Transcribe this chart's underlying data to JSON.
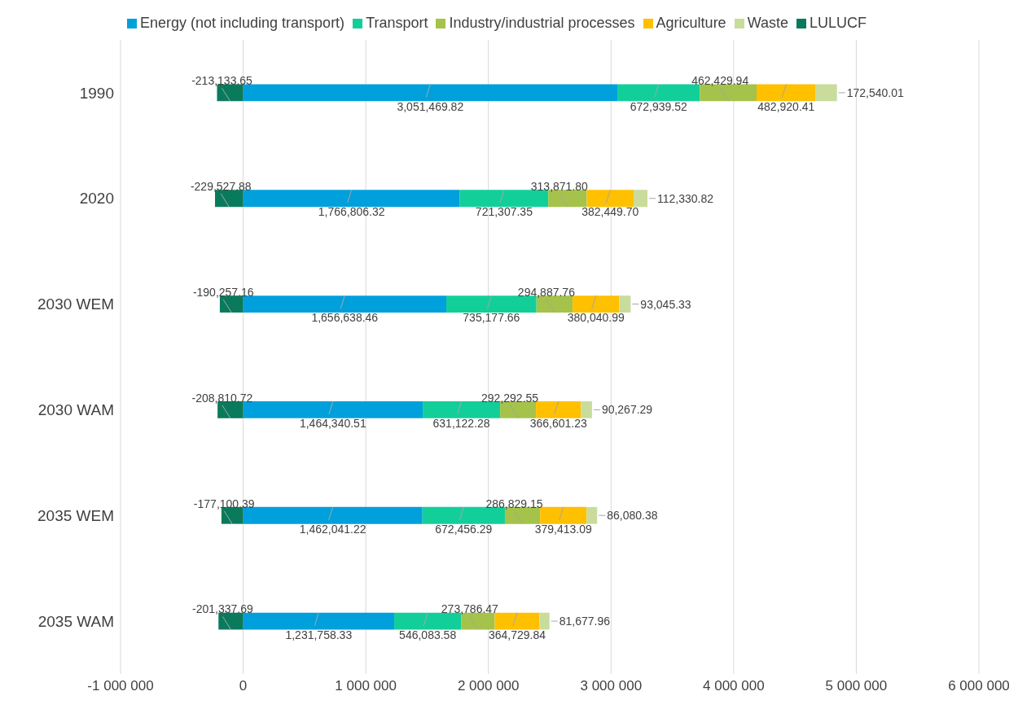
{
  "chart_data": {
    "type": "bar",
    "orientation": "horizontal",
    "stacked": true,
    "categories": [
      "1990",
      "2020",
      "2030 WEM",
      "2030 WAM",
      "2035 WEM",
      "2035 WAM"
    ],
    "series": [
      {
        "name": "Energy (not including transport)",
        "color": "#00a0dc",
        "values": [
          3051469.82,
          1766806.32,
          1656638.46,
          1464340.51,
          1462041.22,
          1231758.33
        ],
        "value_labels": [
          "3,051,469.82",
          "1,766,806.32",
          "1,656,638.46",
          "1,464,340.51",
          "1,462,041.22",
          "1,231,758.33"
        ]
      },
      {
        "name": "Transport",
        "color": "#12cf9a",
        "values": [
          672939.52,
          721307.35,
          735177.66,
          631122.28,
          672456.29,
          546083.58
        ],
        "value_labels": [
          "672,939.52",
          "721,307.35",
          "735,177.66",
          "631,122.28",
          "672,456.29",
          "546,083.58"
        ]
      },
      {
        "name": "Industry/industrial processes",
        "color": "#a5c24a",
        "values": [
          462429.94,
          313871.8,
          294887.76,
          292292.55,
          286829.15,
          273786.47
        ],
        "value_labels": [
          "462,429.94",
          "313,871.80",
          "294,887.76",
          "292,292.55",
          "286,829.15",
          "273,786.47"
        ]
      },
      {
        "name": "Agriculture",
        "color": "#ffc000",
        "values": [
          482920.41,
          382449.7,
          380040.99,
          366601.23,
          379413.09,
          364729.84
        ],
        "value_labels": [
          "482,920.41",
          "382,449.70",
          "380,040.99",
          "366,601.23",
          "379,413.09",
          "364,729.84"
        ]
      },
      {
        "name": "Waste",
        "color": "#c9dc9b",
        "values": [
          172540.01,
          112330.82,
          93045.33,
          90267.29,
          86080.38,
          81677.96
        ],
        "value_labels": [
          "172,540.01",
          "112,330.82",
          "93,045.33",
          "90,267.29",
          "86,080.38",
          "81,677.96"
        ]
      },
      {
        "name": "LULUCF",
        "color": "#0a7a5c",
        "values": [
          -213133.65,
          -229527.88,
          -190257.16,
          -208810.72,
          -177100.39,
          -201337.69
        ],
        "value_labels": [
          "-213,133.65",
          "-229,527.88",
          "-190,257.16",
          "-208,810.72",
          "-177,100.39",
          "-201,337.69"
        ]
      }
    ],
    "xlim": [
      -1000000,
      6000000
    ],
    "xticks": [
      {
        "value": -1000000,
        "label": "-1 000 000"
      },
      0,
      {
        "value": 1000000,
        "label": "1 000 000"
      },
      {
        "value": 2000000,
        "label": "2 000 000"
      },
      {
        "value": 3000000,
        "label": "3 000 000"
      },
      {
        "value": 4000000,
        "label": "4 000 000"
      },
      {
        "value": 5000000,
        "label": "5 000 000"
      },
      {
        "value": 6000000,
        "label": "6 000 000"
      }
    ],
    "grid": "x",
    "legend": "top"
  }
}
